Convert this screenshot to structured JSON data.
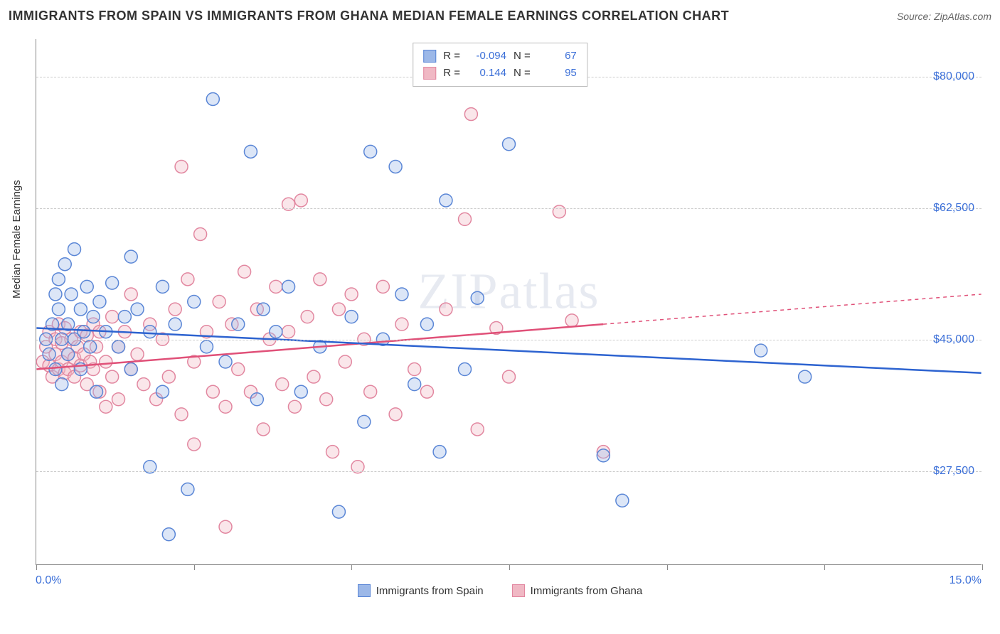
{
  "title": "IMMIGRANTS FROM SPAIN VS IMMIGRANTS FROM GHANA MEDIAN FEMALE EARNINGS CORRELATION CHART",
  "source_label": "Source: ZipAtlas.com",
  "watermark": "ZIPatlas",
  "y_axis_title": "Median Female Earnings",
  "chart": {
    "type": "scatter",
    "background_color": "#ffffff",
    "grid_color": "#cccccc",
    "grid_dash": "4,4",
    "axis_color": "#888888",
    "xlim": [
      0,
      15
    ],
    "ylim": [
      15000,
      85000
    ],
    "x_tick_positions": [
      0,
      2.5,
      5,
      7.5,
      10,
      12.5,
      15
    ],
    "x_min_label": "0.0%",
    "x_max_label": "15.0%",
    "y_ticks": [
      {
        "value": 27500,
        "label": "$27,500"
      },
      {
        "value": 45000,
        "label": "$45,000"
      },
      {
        "value": 62500,
        "label": "$62,500"
      },
      {
        "value": 80000,
        "label": "$80,000"
      }
    ],
    "x_label_color": "#3b6fd8",
    "y_label_color": "#3b6fd8",
    "label_fontsize": 16,
    "marker_radius": 9,
    "marker_stroke_width": 1.5,
    "marker_fill_opacity": 0.35
  },
  "series": {
    "spain": {
      "label": "Immigrants from Spain",
      "color_fill": "#9cb8e8",
      "color_stroke": "#5a86d6",
      "R": "-0.094",
      "N": "67",
      "regression": {
        "x1": 0,
        "y1": 46500,
        "x2": 15,
        "y2": 40500,
        "stroke": "#2d63d0",
        "width": 2.5,
        "dash": "none",
        "x_data_max": 15
      },
      "points": [
        [
          0.15,
          45000
        ],
        [
          0.2,
          43000
        ],
        [
          0.25,
          47000
        ],
        [
          0.3,
          51000
        ],
        [
          0.3,
          41000
        ],
        [
          0.35,
          49000
        ],
        [
          0.35,
          53000
        ],
        [
          0.4,
          45000
        ],
        [
          0.4,
          39000
        ],
        [
          0.45,
          55000
        ],
        [
          0.5,
          47000
        ],
        [
          0.5,
          43000
        ],
        [
          0.55,
          51000
        ],
        [
          0.6,
          45000
        ],
        [
          0.6,
          57000
        ],
        [
          0.7,
          49000
        ],
        [
          0.7,
          41000
        ],
        [
          0.75,
          46000
        ],
        [
          0.8,
          52000
        ],
        [
          0.85,
          44000
        ],
        [
          0.9,
          48000
        ],
        [
          0.95,
          38000
        ],
        [
          1.0,
          50000
        ],
        [
          1.1,
          46000
        ],
        [
          1.2,
          52500
        ],
        [
          1.3,
          44000
        ],
        [
          1.4,
          48000
        ],
        [
          1.5,
          41000
        ],
        [
          1.5,
          56000
        ],
        [
          1.6,
          49000
        ],
        [
          1.8,
          28000
        ],
        [
          1.8,
          46000
        ],
        [
          2.0,
          52000
        ],
        [
          2.0,
          38000
        ],
        [
          2.1,
          19000
        ],
        [
          2.2,
          47000
        ],
        [
          2.4,
          25000
        ],
        [
          2.5,
          50000
        ],
        [
          2.7,
          44000
        ],
        [
          2.8,
          77000
        ],
        [
          3.0,
          42000
        ],
        [
          3.2,
          47000
        ],
        [
          3.4,
          70000
        ],
        [
          3.5,
          37000
        ],
        [
          3.6,
          49000
        ],
        [
          3.8,
          46000
        ],
        [
          4.0,
          52000
        ],
        [
          4.2,
          38000
        ],
        [
          4.5,
          44000
        ],
        [
          4.8,
          22000
        ],
        [
          5.0,
          48000
        ],
        [
          5.2,
          34000
        ],
        [
          5.3,
          70000
        ],
        [
          5.5,
          45000
        ],
        [
          5.7,
          68000
        ],
        [
          5.8,
          51000
        ],
        [
          6.0,
          39000
        ],
        [
          6.2,
          47000
        ],
        [
          6.4,
          30000
        ],
        [
          6.5,
          63500
        ],
        [
          6.8,
          41000
        ],
        [
          7.0,
          50500
        ],
        [
          7.5,
          71000
        ],
        [
          9.0,
          29500
        ],
        [
          9.3,
          23500
        ],
        [
          11.5,
          43500
        ],
        [
          12.2,
          40000
        ]
      ]
    },
    "ghana": {
      "label": "Immigrants from Ghana",
      "color_fill": "#f0b8c4",
      "color_stroke": "#e287a0",
      "R": "0.144",
      "N": "95",
      "regression": {
        "x1": 0,
        "y1": 41000,
        "x2": 15,
        "y2": 51000,
        "stroke": "#e05078",
        "width": 2.5,
        "dash": "5,5",
        "x_data_max": 9.0
      },
      "points": [
        [
          0.1,
          42000
        ],
        [
          0.15,
          44000
        ],
        [
          0.2,
          41500
        ],
        [
          0.2,
          46000
        ],
        [
          0.25,
          40000
        ],
        [
          0.3,
          43000
        ],
        [
          0.3,
          45000
        ],
        [
          0.35,
          41000
        ],
        [
          0.35,
          47000
        ],
        [
          0.4,
          42000
        ],
        [
          0.4,
          44500
        ],
        [
          0.45,
          40500
        ],
        [
          0.45,
          46500
        ],
        [
          0.5,
          43000
        ],
        [
          0.5,
          41000
        ],
        [
          0.55,
          45000
        ],
        [
          0.6,
          42500
        ],
        [
          0.6,
          40000
        ],
        [
          0.65,
          44000
        ],
        [
          0.7,
          46000
        ],
        [
          0.7,
          41500
        ],
        [
          0.75,
          43000
        ],
        [
          0.8,
          45500
        ],
        [
          0.8,
          39000
        ],
        [
          0.85,
          42000
        ],
        [
          0.9,
          47000
        ],
        [
          0.9,
          41000
        ],
        [
          0.95,
          44000
        ],
        [
          1.0,
          38000
        ],
        [
          1.0,
          46000
        ],
        [
          1.1,
          42000
        ],
        [
          1.1,
          36000
        ],
        [
          1.2,
          48000
        ],
        [
          1.2,
          40000
        ],
        [
          1.3,
          44000
        ],
        [
          1.3,
          37000
        ],
        [
          1.4,
          46000
        ],
        [
          1.5,
          41000
        ],
        [
          1.5,
          51000
        ],
        [
          1.6,
          43000
        ],
        [
          1.7,
          39000
        ],
        [
          1.8,
          47000
        ],
        [
          1.9,
          37000
        ],
        [
          2.0,
          45000
        ],
        [
          2.1,
          40000
        ],
        [
          2.2,
          49000
        ],
        [
          2.3,
          35000
        ],
        [
          2.3,
          68000
        ],
        [
          2.4,
          53000
        ],
        [
          2.5,
          42000
        ],
        [
          2.5,
          31000
        ],
        [
          2.6,
          59000
        ],
        [
          2.7,
          46000
        ],
        [
          2.8,
          38000
        ],
        [
          2.9,
          50000
        ],
        [
          3.0,
          36000
        ],
        [
          3.0,
          20000
        ],
        [
          3.1,
          47000
        ],
        [
          3.2,
          41000
        ],
        [
          3.3,
          54000
        ],
        [
          3.4,
          38000
        ],
        [
          3.5,
          49000
        ],
        [
          3.6,
          33000
        ],
        [
          3.7,
          45000
        ],
        [
          3.8,
          52000
        ],
        [
          3.9,
          39000
        ],
        [
          4.0,
          63000
        ],
        [
          4.0,
          46000
        ],
        [
          4.1,
          36000
        ],
        [
          4.2,
          63500
        ],
        [
          4.3,
          48000
        ],
        [
          4.4,
          40000
        ],
        [
          4.5,
          53000
        ],
        [
          4.6,
          37000
        ],
        [
          4.7,
          30000
        ],
        [
          4.8,
          49000
        ],
        [
          4.9,
          42000
        ],
        [
          5.0,
          51000
        ],
        [
          5.1,
          28000
        ],
        [
          5.2,
          45000
        ],
        [
          5.3,
          38000
        ],
        [
          5.5,
          52000
        ],
        [
          5.7,
          35000
        ],
        [
          5.8,
          47000
        ],
        [
          6.0,
          41000
        ],
        [
          6.2,
          38000
        ],
        [
          6.5,
          49000
        ],
        [
          6.8,
          61000
        ],
        [
          6.9,
          75000
        ],
        [
          7.0,
          33000
        ],
        [
          7.3,
          46500
        ],
        [
          7.5,
          40000
        ],
        [
          8.3,
          62000
        ],
        [
          8.5,
          47500
        ],
        [
          9.0,
          30000
        ]
      ]
    }
  },
  "legend_stats_labels": {
    "R": "R =",
    "N": "N ="
  }
}
